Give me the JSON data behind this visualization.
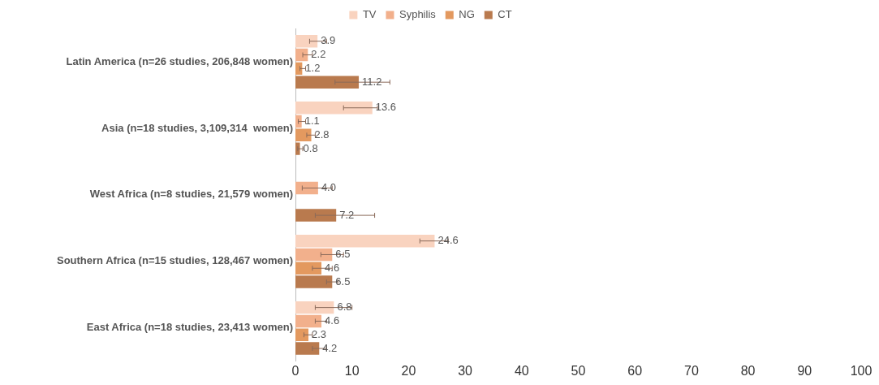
{
  "chart_data": {
    "type": "bar",
    "orientation": "horizontal",
    "categories": [
      "Latin America (n=26 studies, 206,848 women)",
      "Asia (n=18 studies, 3,109,314  women)",
      "West Africa (n=8 studies, 21,579 women)",
      "Southern Africa (n=15 studies, 128,467 women)",
      "East Africa (n=18 studies, 23,413 women)"
    ],
    "series": [
      {
        "name": "TV",
        "color": "#f9d3bf",
        "values": [
          3.9,
          13.6,
          null,
          24.6,
          6.8
        ],
        "errors": [
          [
            2.5,
            5.5
          ],
          [
            8.5,
            14.5
          ],
          null,
          [
            22,
            27
          ],
          [
            3.5,
            10
          ]
        ],
        "value_labels": [
          "3.9",
          "13.6",
          null,
          "24.6",
          "6.8"
        ]
      },
      {
        "name": "Syphilis",
        "color": "#f2b08c",
        "values": [
          2.2,
          1.1,
          4.0,
          6.5,
          4.6
        ],
        "errors": [
          [
            1.3,
            3.0
          ],
          [
            0.5,
            1.8
          ],
          [
            1.2,
            6.5
          ],
          [
            4.5,
            8.5
          ],
          [
            3.5,
            5.5
          ]
        ],
        "value_labels": [
          "2.2",
          "1.1",
          "4.0",
          "6.5",
          "4.6"
        ]
      },
      {
        "name": "NG",
        "color": "#e3995f",
        "values": [
          1.2,
          2.8,
          null,
          4.6,
          2.3
        ],
        "errors": [
          [
            0.8,
            1.8
          ],
          [
            2.0,
            3.5
          ],
          null,
          [
            3.0,
            6.5
          ],
          [
            1.5,
            3.0
          ]
        ],
        "value_labels": [
          "1.2",
          "2.8",
          null,
          "4.6",
          "2.3"
        ]
      },
      {
        "name": "CT",
        "color": "#b97a4e",
        "values": [
          11.2,
          0.8,
          7.2,
          6.5,
          4.2
        ],
        "errors": [
          [
            7.0,
            16.7
          ],
          [
            0.4,
            1.3
          ],
          [
            3.5,
            14.0
          ],
          [
            5.5,
            7.5
          ],
          [
            3.0,
            5.5
          ]
        ],
        "value_labels": [
          "11.2",
          "0.8",
          "7.2",
          "6.5",
          "4.2"
        ]
      }
    ],
    "xlim": [
      0,
      100
    ],
    "xticks": [
      0,
      10,
      20,
      30,
      40,
      50,
      60,
      70,
      80,
      90,
      100
    ],
    "legend": "top",
    "grid": false
  }
}
